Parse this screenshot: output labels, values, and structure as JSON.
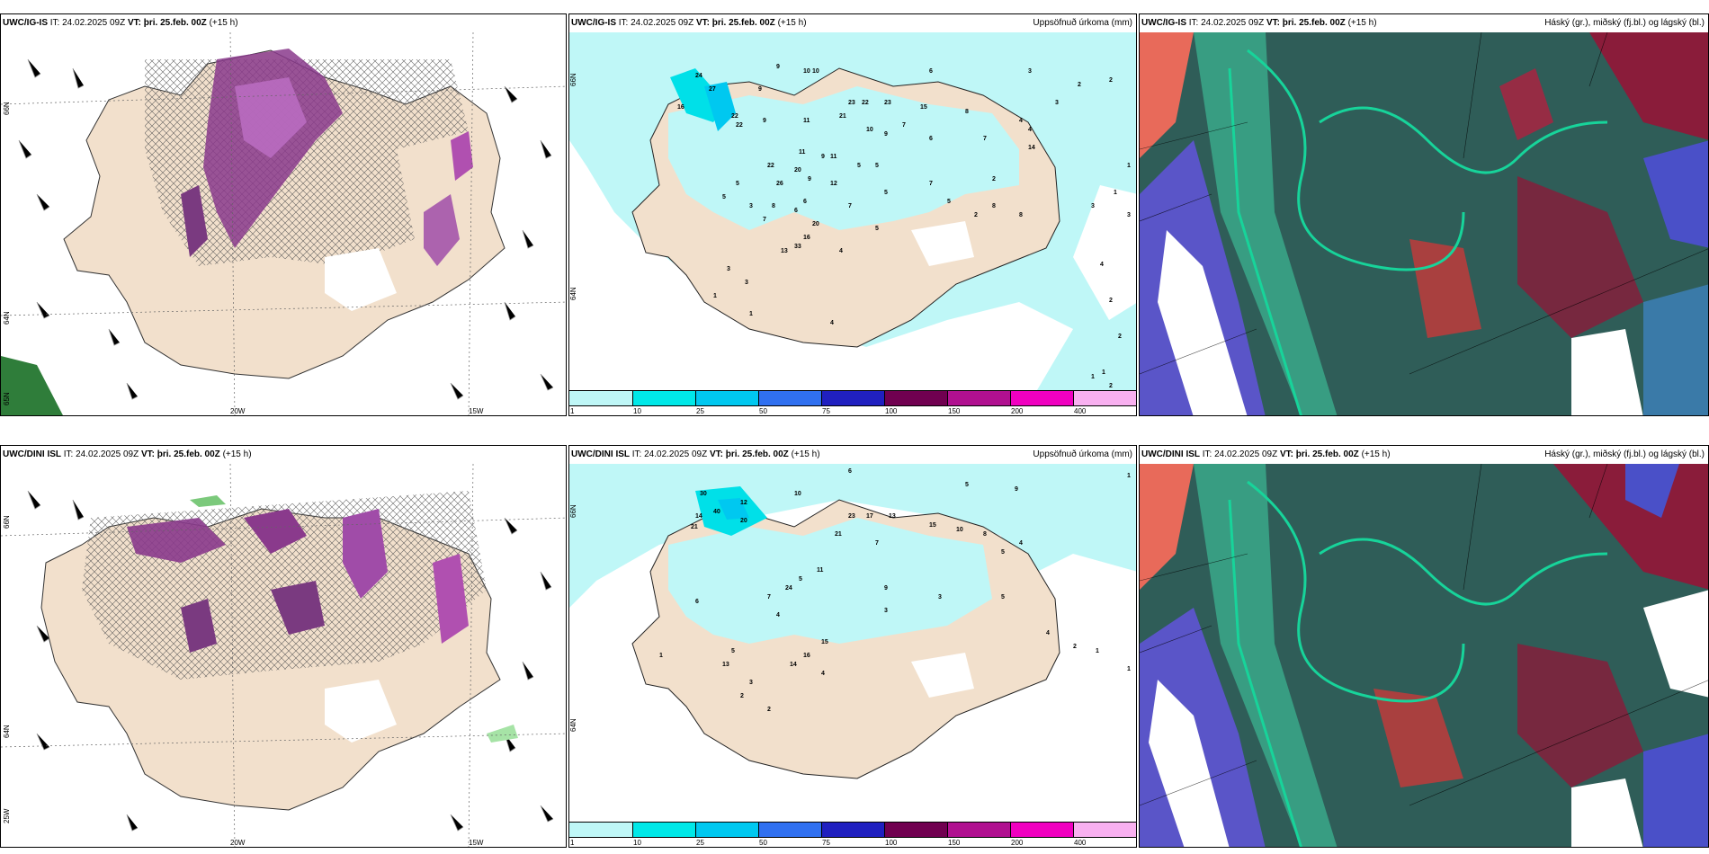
{
  "panels": {
    "p11": {
      "model": "UWC/IG-IS",
      "it": "IT: 24.02.2025 09Z",
      "vt": "VT: þri. 25.feb. 00Z",
      "lead": "(+15 h)",
      "right": ""
    },
    "p12": {
      "model": "UWC/IG-IS",
      "it": "IT: 24.02.2025 09Z",
      "vt": "VT: þri. 25.feb. 00Z",
      "lead": "(+15 h)",
      "right": "Uppsöfnuð úrkoma (mm)"
    },
    "p13": {
      "model": "UWC/IG-IS",
      "it": "IT: 24.02.2025 09Z",
      "vt": "VT: þri. 25.feb. 00Z",
      "lead": "(+15 h)",
      "right": "Háský (gr.), miðský (fj.bl.) og lágský (bl.)"
    },
    "p21": {
      "model": "UWC/DINI ISL",
      "it": "IT: 24.02.2025 09Z",
      "vt": "VT: þri. 25.feb. 00Z",
      "lead": "(+15 h)",
      "right": ""
    },
    "p22": {
      "model": "UWC/DINI ISL",
      "it": "IT: 24.02.2025 09Z",
      "vt": "VT: þri. 25.feb. 00Z",
      "lead": "(+15 h)",
      "right": "Uppsöfnuð úrkoma (mm)"
    },
    "p23": {
      "model": "UWC/DINI ISL",
      "it": "IT: 24.02.2025 09Z",
      "vt": "VT: þri. 25.feb. 00Z",
      "lead": "(+15 h)",
      "right": "Háský (gr.), miðský (fj.bl.) og lágský (bl.)"
    }
  },
  "axes": {
    "lat66": "66N",
    "lat64": "64N",
    "lon20": "20W",
    "lon15": "15W",
    "lat65": "65N",
    "lon25": "25W"
  },
  "colorbar": {
    "ticks": [
      "1",
      "10",
      "25",
      "50",
      "75",
      "100",
      "150",
      "200",
      "400"
    ],
    "colors": [
      "#bff7f7",
      "#00e8e8",
      "#00c8f0",
      "#3070f0",
      "#2020c0",
      "#700050",
      "#b01090",
      "#f000c0",
      "#f8b0f0"
    ]
  },
  "precip_labels_top": [
    "9",
    "10",
    "10",
    "6",
    "3",
    "3",
    "2",
    "2",
    "16",
    "24",
    "27",
    "22",
    "22",
    "9",
    "9",
    "23",
    "22",
    "23",
    "15",
    "7",
    "11",
    "21",
    "10",
    "9",
    "8",
    "9",
    "11",
    "11",
    "5",
    "5",
    "6",
    "7",
    "4",
    "4",
    "14",
    "22",
    "20",
    "26",
    "9",
    "12",
    "5",
    "5",
    "3",
    "7",
    "6",
    "8",
    "7",
    "7",
    "5",
    "5",
    "2",
    "2",
    "1",
    "1",
    "6",
    "13",
    "16",
    "20",
    "33",
    "4",
    "5",
    "8",
    "8",
    "3",
    "4",
    "3",
    "3",
    "3",
    "1",
    "1",
    "4",
    "2",
    "2",
    "1",
    "1",
    "2"
  ],
  "precip_labels_bottom": [
    "6",
    "5",
    "1",
    "9",
    "10",
    "12",
    "30",
    "40",
    "14",
    "21",
    "20",
    "23",
    "17",
    "13",
    "15",
    "7",
    "10",
    "8",
    "5",
    "4",
    "11",
    "21",
    "24",
    "9",
    "7",
    "5",
    "13",
    "14",
    "16",
    "15",
    "5",
    "3",
    "2",
    "1",
    "2",
    "6",
    "4",
    "4",
    "3",
    "3",
    "5",
    "4",
    "2",
    "1",
    "1"
  ]
}
